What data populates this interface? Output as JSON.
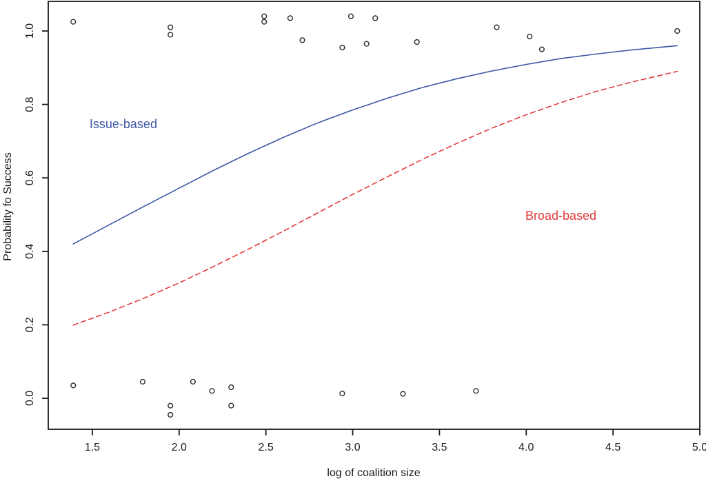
{
  "chart_data": {
    "type": "scatter",
    "title": "",
    "xlabel": "log of coalition size",
    "ylabel": "Probability fo Success",
    "xlim": [
      1.246,
      5.0
    ],
    "ylim": [
      -0.0844,
      1.0806
    ],
    "grid": false,
    "frame": "full-box",
    "xticks": [
      1.5,
      2.0,
      2.5,
      3.0,
      3.5,
      4.0,
      4.5,
      5.0
    ],
    "xtick_labels": [
      "1.5",
      "2.0",
      "2.5",
      "3.0",
      "3.5",
      "4.0",
      "4.5",
      "5.0"
    ],
    "yticks": [
      0.0,
      0.2,
      0.4,
      0.6,
      0.8,
      1.0
    ],
    "ytick_labels": [
      "0.0",
      "0.2",
      "0.4",
      "0.6",
      "0.8",
      "1.0"
    ],
    "colors": {
      "issue_based": "#3D56A6",
      "broad_based": "#E23B3C",
      "points": "#2a2a2a",
      "axis": "#1a1a1a"
    },
    "points": {
      "marker": "open-circle",
      "successes": [
        [
          1.39,
          1.025
        ],
        [
          1.95,
          1.01
        ],
        [
          1.95,
          0.99
        ],
        [
          2.49,
          1.04
        ],
        [
          2.49,
          1.025
        ],
        [
          2.64,
          1.035
        ],
        [
          2.71,
          0.975
        ],
        [
          2.94,
          0.955
        ],
        [
          2.99,
          1.04
        ],
        [
          3.08,
          0.965
        ],
        [
          3.13,
          1.035
        ],
        [
          3.37,
          0.97
        ],
        [
          3.83,
          1.01
        ],
        [
          4.02,
          0.985
        ],
        [
          4.09,
          0.95
        ],
        [
          4.87,
          1.0
        ]
      ],
      "failures": [
        [
          1.39,
          0.035
        ],
        [
          1.79,
          0.045
        ],
        [
          1.95,
          -0.02
        ],
        [
          1.95,
          -0.045
        ],
        [
          2.08,
          0.045
        ],
        [
          2.19,
          0.02
        ],
        [
          2.3,
          0.03
        ],
        [
          2.3,
          -0.02
        ],
        [
          2.94,
          0.013
        ],
        [
          3.29,
          0.012
        ],
        [
          3.71,
          0.02
        ]
      ]
    },
    "series": [
      {
        "name": "Issue-based",
        "style": "solid",
        "color": "#3D56A6",
        "x": [
          1.39,
          1.6,
          1.8,
          2.0,
          2.2,
          2.4,
          2.6,
          2.8,
          3.0,
          3.2,
          3.4,
          3.6,
          3.8,
          4.0,
          4.2,
          4.4,
          4.6,
          4.87
        ],
        "y": [
          0.42,
          0.473,
          0.523,
          0.572,
          0.621,
          0.667,
          0.71,
          0.75,
          0.785,
          0.817,
          0.846,
          0.87,
          0.891,
          0.909,
          0.925,
          0.937,
          0.948,
          0.96
        ]
      },
      {
        "name": "Broad-based",
        "style": "dashed",
        "color": "#E23B3C",
        "x": [
          1.39,
          1.6,
          1.8,
          2.0,
          2.2,
          2.4,
          2.6,
          2.8,
          3.0,
          3.2,
          3.4,
          3.6,
          3.8,
          4.0,
          4.2,
          4.4,
          4.6,
          4.87
        ],
        "y": [
          0.199,
          0.235,
          0.273,
          0.314,
          0.359,
          0.406,
          0.455,
          0.505,
          0.555,
          0.603,
          0.65,
          0.694,
          0.735,
          0.772,
          0.805,
          0.835,
          0.86,
          0.89
        ]
      }
    ],
    "annotations": [
      {
        "text": "Issue-based",
        "x": 1.484,
        "y": 0.747,
        "color": "#3D56A6"
      },
      {
        "text": "Broad-based",
        "x": 3.995,
        "y": 0.497,
        "color": "#E23B3C"
      }
    ]
  }
}
